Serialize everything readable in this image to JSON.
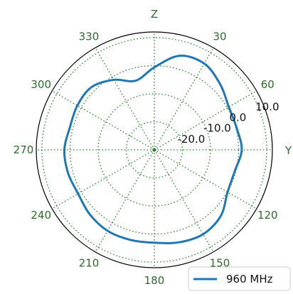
{
  "chart_data": {
    "type": "line",
    "projection": "polar",
    "angle_zero_direction": "top",
    "angle_direction": "clockwise",
    "axis_name_labels": {
      "top": "Z",
      "right": "Y"
    },
    "angle_tick_labels": [
      "330",
      "30",
      "300",
      "60",
      "270",
      "240",
      "120",
      "210",
      "150",
      "180"
    ],
    "angle_ticks_deg": [
      330,
      30,
      300,
      60,
      270,
      240,
      120,
      210,
      150,
      180
    ],
    "radial_tick_labels": [
      "10.0",
      "0.0",
      "-10.0",
      "-20.0"
    ],
    "radial_ticks": [
      10.0,
      0.0,
      -10.0,
      -20.0
    ],
    "rlim": [
      -30,
      12
    ],
    "grid": true,
    "grid_color": "#2e7d32",
    "series": [
      {
        "name": "960 MHz",
        "color": "#1f77b4",
        "theta_deg": [
          0,
          15,
          30,
          45,
          60,
          75,
          90,
          105,
          120,
          135,
          150,
          165,
          180,
          195,
          210,
          225,
          240,
          255,
          270,
          285,
          300,
          315,
          330,
          345,
          360
        ],
        "r": [
          -0.6,
          4.7,
          5.5,
          3.1,
          0.6,
          0.3,
          1.1,
          -0.4,
          0.1,
          3.4,
          4.7,
          4.1,
          3.1,
          3.2,
          3.3,
          2.5,
          1.3,
          1.8,
          2.0,
          1.1,
          1.6,
          1.6,
          -1.2,
          -4.5,
          -0.6
        ]
      }
    ],
    "legend": {
      "position": "bottom-right"
    }
  }
}
